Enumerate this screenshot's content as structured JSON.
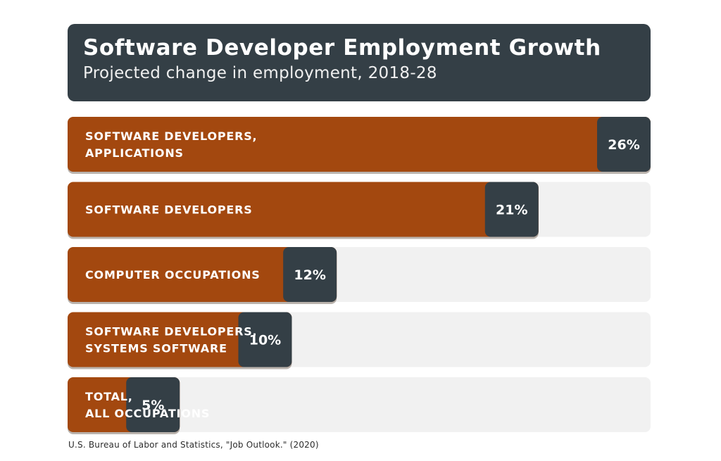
{
  "chart_data": {
    "type": "bar",
    "orientation": "horizontal",
    "title": "Software Developer Employment Growth",
    "subtitle": "Projected change in employment, 2018-28",
    "categories": [
      [
        "SOFTWARE DEVELOPERS,",
        "APPLICATIONS"
      ],
      [
        "SOFTWARE DEVELOPERS"
      ],
      [
        "COMPUTER OCCUPATIONS"
      ],
      [
        "SOFTWARE DEVELOPERS,",
        "SYSTEMS SOFTWARE"
      ],
      [
        "TOTAL,",
        "ALL OCCUPATIONS"
      ]
    ],
    "values": [
      26,
      21,
      12,
      10,
      5
    ],
    "value_labels": [
      "26%",
      "21%",
      "12%",
      "10%",
      "5%"
    ],
    "unit": "%",
    "xlim": [
      0,
      26
    ],
    "grid": false,
    "legend": "none"
  },
  "source": "U.S. Bureau of Labor and Statistics, \"Job Outlook.\" (2020)",
  "colors": {
    "bar": "#a3480f",
    "track": "#f1f1f1",
    "label_box": "#343f46",
    "header": "#343f46",
    "text_light": "#ffffff"
  }
}
